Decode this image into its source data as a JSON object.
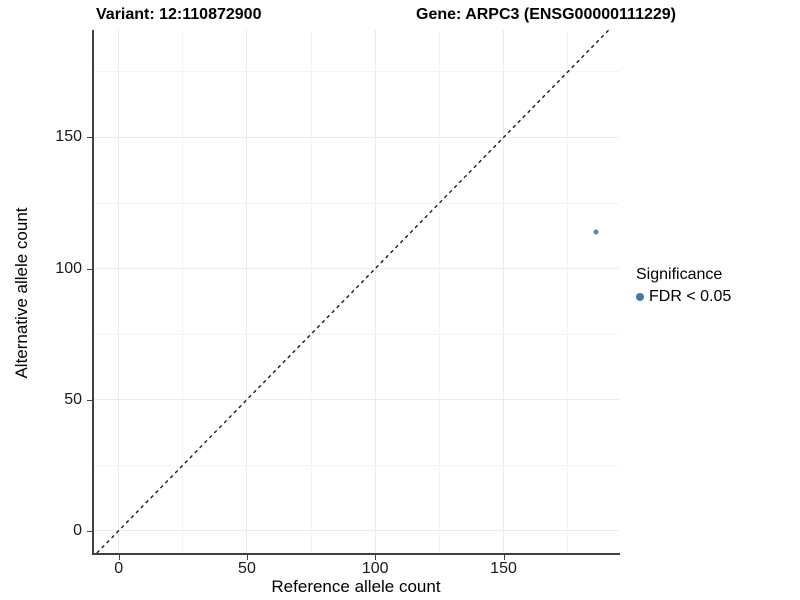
{
  "titles": {
    "variant": "Variant: 12:110872900",
    "gene": "Gene: ARPC3 (ENSG00000111229)"
  },
  "legend": {
    "title": "Significance",
    "items": [
      {
        "label": "FDR < 0.05",
        "color": "#4376AE"
      }
    ]
  },
  "chart_data": {
    "type": "scatter",
    "title": "Variant: 12:110872900 / Gene: ARPC3 (ENSG00000111229)",
    "xlabel": "Reference allele count",
    "ylabel": "Alternative allele count",
    "xlim": [
      -10,
      195
    ],
    "ylim": [
      -8.5,
      191
    ],
    "x_ticks": [
      0,
      50,
      100,
      150
    ],
    "y_ticks": [
      0,
      50,
      100,
      150
    ],
    "x_minor_ticks": [
      25,
      75,
      125,
      175
    ],
    "y_minor_ticks": [
      25,
      75,
      125,
      175
    ],
    "grid": "on",
    "legend_position": "right",
    "series": [
      {
        "name": "FDR < 0.05",
        "color": "#5C88B8",
        "points": [
          {
            "x": 186,
            "y": 114
          }
        ]
      }
    ],
    "reference_line": {
      "kind": "identity",
      "style": "dashed",
      "color": "#1a1a1a",
      "from": -8.5,
      "to": 191
    }
  }
}
